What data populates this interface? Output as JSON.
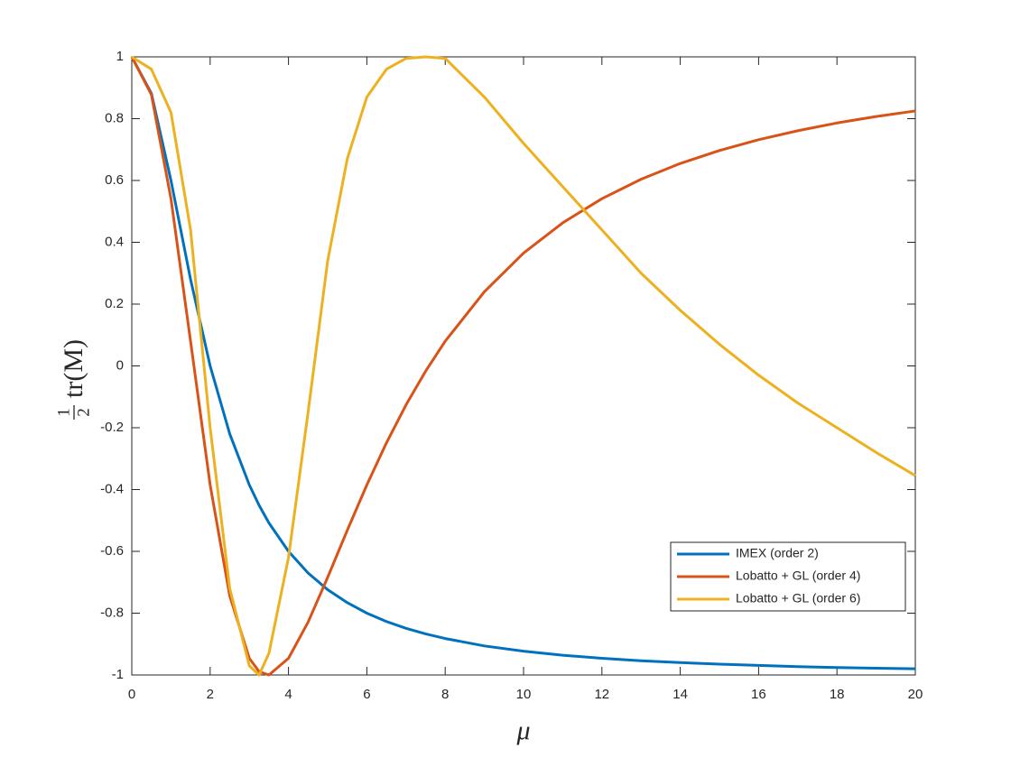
{
  "chart_data": {
    "type": "line",
    "x_label": "μ",
    "y_label": {
      "numerator": "1",
      "denominator": "2",
      "text": "tr(M)"
    },
    "x": [
      0,
      0.5,
      1,
      1.5,
      2,
      2.5,
      3,
      3.25,
      3.5,
      4,
      4.5,
      5,
      5.5,
      6,
      6.5,
      7,
      7.5,
      8,
      9,
      10,
      11,
      12,
      13,
      14,
      15,
      16,
      17,
      18,
      19,
      20
    ],
    "series": [
      {
        "name": "IMEX (order 2)",
        "color": "#0072BD",
        "values": [
          1,
          0.882,
          0.6,
          0.28,
          0,
          -0.22,
          -0.385,
          -0.451,
          -0.508,
          -0.6,
          -0.67,
          -0.724,
          -0.766,
          -0.8,
          -0.827,
          -0.849,
          -0.867,
          -0.882,
          -0.906,
          -0.923,
          -0.936,
          -0.946,
          -0.954,
          -0.96,
          -0.965,
          -0.969,
          -0.973,
          -0.976,
          -0.978,
          -0.98
        ]
      },
      {
        "name": "Lobatto + GL (order 4)",
        "color": "#D95319",
        "values": [
          1,
          0.878,
          0.541,
          0.08,
          -0.385,
          -0.744,
          -0.946,
          -0.989,
          -1,
          -0.946,
          -0.829,
          -0.684,
          -0.532,
          -0.385,
          -0.249,
          -0.126,
          -0.017,
          0.08,
          0.24,
          0.365,
          0.463,
          0.541,
          0.604,
          0.655,
          0.697,
          0.732,
          0.761,
          0.786,
          0.807,
          0.825
        ]
      },
      {
        "name": "Lobatto + GL (order 6)",
        "color": "#EDB120",
        "values": [
          1,
          0.96,
          0.82,
          0.44,
          -0.2,
          -0.72,
          -0.97,
          -1,
          -0.93,
          -0.62,
          -0.15,
          0.34,
          0.67,
          0.87,
          0.96,
          0.995,
          1,
          0.995,
          0.87,
          0.72,
          0.58,
          0.44,
          0.3,
          0.18,
          0.07,
          -0.03,
          -0.12,
          -0.2,
          -0.28,
          -0.355
        ]
      }
    ],
    "xlim": [
      0,
      20
    ],
    "ylim": [
      -1,
      1
    ],
    "xticks": [
      0,
      2,
      4,
      6,
      8,
      10,
      12,
      14,
      16,
      18,
      20
    ],
    "yticks": [
      -1,
      -0.8,
      -0.6,
      -0.4,
      -0.2,
      0,
      0.2,
      0.4,
      0.6,
      0.8,
      1
    ],
    "grid": false,
    "legend_location": "southeast"
  }
}
